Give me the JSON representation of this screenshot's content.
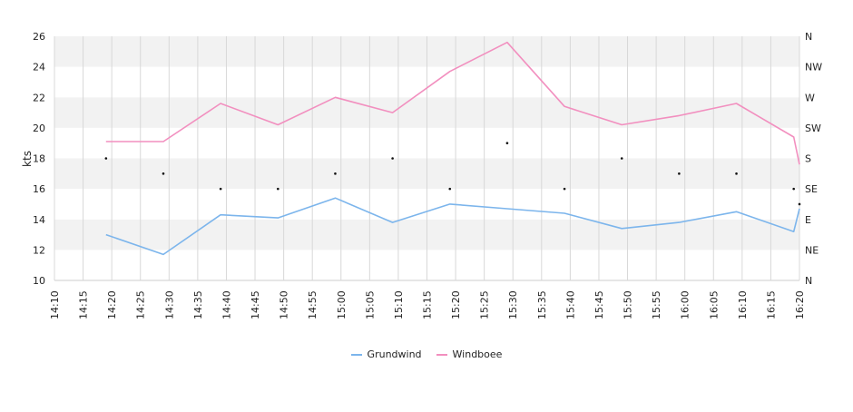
{
  "chart_data": {
    "type": "line",
    "title": "",
    "xlabel": "",
    "ylabel": "kts",
    "ylim": [
      10,
      26
    ],
    "y_ticks": [
      "10",
      "12",
      "14",
      "16",
      "18",
      "20",
      "22",
      "24",
      "26"
    ],
    "x_ticks": [
      "14:10",
      "14:15",
      "14:20",
      "14:25",
      "14:30",
      "14:35",
      "14:40",
      "14:45",
      "14:50",
      "14:55",
      "15:00",
      "15:05",
      "15:10",
      "15:15",
      "15:20",
      "15:25",
      "15:30",
      "15:35",
      "15:40",
      "15:45",
      "15:50",
      "15:55",
      "16:00",
      "16:05",
      "16:10",
      "16:15",
      "16:20"
    ],
    "direction_axis_labels": [
      "N",
      "NE",
      "E",
      "SE",
      "S",
      "SW",
      "W",
      "NW",
      "N"
    ],
    "x_range": [
      "14:10",
      "16:20"
    ],
    "grid": true,
    "legend_position": "bottom",
    "series": [
      {
        "name": "Grundwind",
        "color": "#7cb5ec",
        "x": [
          "14:19",
          "14:29",
          "14:39",
          "14:49",
          "14:59",
          "15:09",
          "15:19",
          "15:29",
          "15:39",
          "15:49",
          "15:59",
          "16:09",
          "16:19",
          "16:20"
        ],
        "values": [
          13.0,
          11.7,
          14.3,
          14.1,
          15.4,
          13.8,
          15.0,
          14.7,
          14.4,
          13.4,
          13.8,
          14.5,
          13.2,
          14.7
        ]
      },
      {
        "name": "Windboee",
        "color": "#f28fbf",
        "x": [
          "14:19",
          "14:29",
          "14:39",
          "14:49",
          "14:59",
          "15:09",
          "15:19",
          "15:29",
          "15:39",
          "15:49",
          "15:59",
          "16:09",
          "16:19",
          "16:20"
        ],
        "values": [
          19.1,
          19.1,
          21.6,
          20.2,
          22.0,
          21.0,
          23.7,
          25.6,
          21.4,
          20.2,
          20.8,
          21.6,
          19.4,
          17.6
        ]
      }
    ],
    "direction_points": {
      "x": [
        "14:19",
        "14:29",
        "14:39",
        "14:49",
        "14:59",
        "15:09",
        "15:19",
        "15:29",
        "15:39",
        "15:49",
        "15:59",
        "16:09",
        "16:19",
        "16:20"
      ],
      "values": [
        "S",
        "SSE",
        "SE",
        "SE",
        "SSE",
        "S",
        "SE",
        "SSW",
        "SE",
        "S",
        "SSE",
        "SSE",
        "SE",
        "ESE"
      ]
    }
  }
}
